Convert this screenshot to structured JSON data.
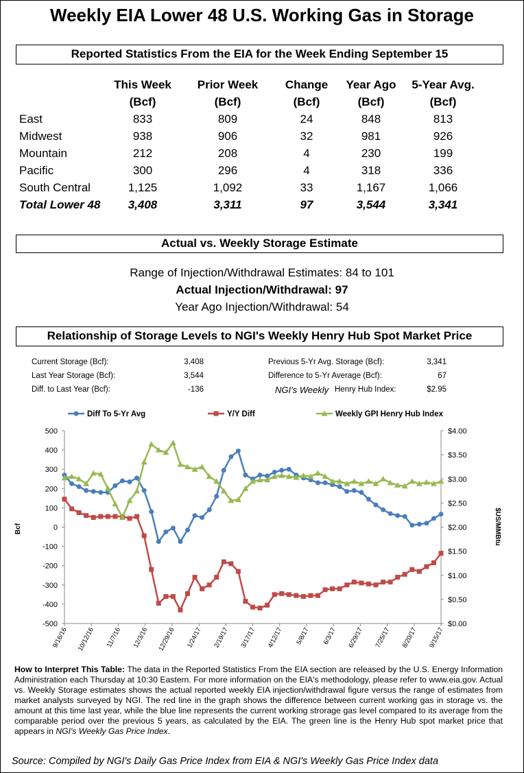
{
  "header": {
    "title": "Weekly EIA Lower 48 U.S. Working Gas in Storage"
  },
  "table": {
    "heading": "Reported Statistics From the EIA for the Week Ending September 15",
    "columns": [
      [
        "This Week",
        "(Bcf)"
      ],
      [
        "Prior Week",
        "(Bcf)"
      ],
      [
        "Change",
        "(Bcf)"
      ],
      [
        "Year Ago",
        "(Bcf)"
      ],
      [
        "5-Year Avg.",
        "(Bcf)"
      ]
    ],
    "rows": [
      {
        "label": "East",
        "cells": [
          "833",
          "809",
          "24",
          "848",
          "813"
        ]
      },
      {
        "label": "Midwest",
        "cells": [
          "938",
          "906",
          "32",
          "981",
          "926"
        ]
      },
      {
        "label": "Mountain",
        "cells": [
          "212",
          "208",
          "4",
          "230",
          "199"
        ]
      },
      {
        "label": "Pacific",
        "cells": [
          "300",
          "296",
          "4",
          "318",
          "336"
        ]
      },
      {
        "label": "South Central",
        "cells": [
          "1,125",
          "1,092",
          "33",
          "1,167",
          "1,066"
        ]
      },
      {
        "label": "Total Lower 48",
        "cells": [
          "3,408",
          "3,311",
          "97",
          "3,544",
          "3,341"
        ]
      }
    ]
  },
  "estimates": {
    "heading": "Actual vs. Weekly Storage Estimate",
    "lines": [
      {
        "label": "Range of Injection/Withdrawal Estimates:",
        "value": "84 to 101"
      },
      {
        "label": "Actual Injection/Withdrawal:",
        "value": "97"
      },
      {
        "label": "Year Ago Injection/Withdrawal:",
        "value": "54"
      }
    ]
  },
  "relationship": {
    "heading": "Relationship of Storage Levels to NGI's Weekly Henry Hub Spot Market Price",
    "left": [
      {
        "label": "Current Storage (Bcf):",
        "value": "3,408"
      },
      {
        "label": "Last Year Storage (Bcf):",
        "value": "3,544"
      },
      {
        "label": "Diff. to Last Year (Bcf):",
        "value": "-136"
      }
    ],
    "right": [
      {
        "label": "Previous 5-Yr Avg. Storage (Bcf):",
        "value": "3,341"
      },
      {
        "label": "Difference to 5-Yr Average (Bcf):",
        "value": "67"
      },
      {
        "label_italic": "NGI's Weekly",
        "label": "Henry Hub Index:",
        "value": "$2.95"
      }
    ]
  },
  "chart_data": {
    "type": "line",
    "date_axis": true,
    "x": [
      "9/16/16",
      "9/23/16",
      "9/30/16",
      "10/7/16",
      "10/14/16",
      "10/21/16",
      "10/28/16",
      "11/4/16",
      "11/11/16",
      "11/18/16",
      "11/25/16",
      "12/2/16",
      "12/9/16",
      "12/16/16",
      "12/23/16",
      "12/30/16",
      "1/6/17",
      "1/13/17",
      "1/20/17",
      "1/27/17",
      "2/3/17",
      "2/10/17",
      "2/17/17",
      "2/24/17",
      "3/3/17",
      "3/10/17",
      "3/17/17",
      "3/24/17",
      "3/31/17",
      "4/7/17",
      "4/14/17",
      "4/21/17",
      "4/28/17",
      "5/5/17",
      "5/12/17",
      "5/19/17",
      "5/26/17",
      "6/2/17",
      "6/9/17",
      "6/16/17",
      "6/23/17",
      "6/30/17",
      "7/7/17",
      "7/14/17",
      "7/21/17",
      "7/28/17",
      "8/4/17",
      "8/11/17",
      "8/18/17",
      "8/25/17",
      "9/1/17",
      "9/8/17",
      "9/15/17"
    ],
    "xlim": [
      "9/16/16",
      "9/15/17"
    ],
    "xticks": [
      "9/16/16",
      "10/12/16",
      "11/7/16",
      "12/3/16",
      "12/29/16",
      "1/24/17",
      "2/19/17",
      "3/17/17",
      "4/12/17",
      "5/8/17",
      "6/3/17",
      "6/29/17",
      "7/25/17",
      "8/20/17",
      "9/15/17"
    ],
    "ylim": [
      -500,
      500
    ],
    "yticks": [
      -500,
      -400,
      -300,
      -200,
      -100,
      0,
      100,
      200,
      300,
      400,
      500
    ],
    "ylabel": "Bcf",
    "y2lim": [
      0,
      4
    ],
    "y2ticks": [
      {
        "value": 0,
        "label": "$0.00"
      },
      {
        "value": 0.5,
        "label": "$0.50"
      },
      {
        "value": 1,
        "label": "$1.00"
      },
      {
        "value": 1.5,
        "label": "$1.50"
      },
      {
        "value": 2,
        "label": "$2.00"
      },
      {
        "value": 2.5,
        "label": "$2.50"
      },
      {
        "value": 3,
        "label": "$3.00"
      },
      {
        "value": 3.5,
        "label": "$3.50"
      },
      {
        "value": 4,
        "label": "$4.00"
      }
    ],
    "y2label": "$US/MMBtu",
    "grid": false,
    "legend": "top",
    "series": [
      {
        "name": "Diff To 5-Yr Avg",
        "color": "#4a7ebb",
        "marker": "circle",
        "values": [
          270,
          225,
          210,
          190,
          185,
          180,
          180,
          215,
          240,
          235,
          255,
          190,
          80,
          -75,
          -25,
          -5,
          -75,
          -15,
          60,
          50,
          90,
          160,
          295,
          365,
          395,
          270,
          250,
          270,
          265,
          285,
          295,
          300,
          270,
          255,
          245,
          230,
          230,
          220,
          210,
          185,
          190,
          180,
          145,
          115,
          90,
          70,
          60,
          55,
          10,
          15,
          20,
          45,
          67
        ]
      },
      {
        "name": "Y/Y Diff",
        "color": "#be4b48",
        "marker": "square",
        "values": [
          145,
          95,
          75,
          60,
          50,
          55,
          55,
          55,
          55,
          45,
          55,
          -45,
          -220,
          -395,
          -360,
          -360,
          -430,
          -345,
          -260,
          -320,
          -300,
          -260,
          -180,
          -190,
          -230,
          -385,
          -415,
          -420,
          -405,
          -350,
          -345,
          -350,
          -355,
          -360,
          -355,
          -355,
          -325,
          -320,
          -320,
          -300,
          -285,
          -290,
          -295,
          -300,
          -285,
          -285,
          -260,
          -245,
          -220,
          -230,
          -205,
          -185,
          -136
        ]
      },
      {
        "name": "Weekly GPI Henry Hub Index",
        "color": "#98b954",
        "marker": "triangle",
        "axis": "y2",
        "values": [
          3.02,
          3.05,
          3.0,
          2.9,
          3.12,
          3.1,
          2.8,
          2.48,
          2.2,
          2.55,
          2.75,
          3.35,
          3.72,
          3.6,
          3.55,
          3.75,
          3.3,
          3.25,
          3.2,
          3.25,
          3.05,
          2.95,
          2.75,
          2.55,
          2.57,
          2.8,
          2.95,
          2.98,
          2.98,
          3.05,
          3.07,
          3.05,
          3.03,
          3.07,
          3.05,
          3.12,
          3.05,
          2.95,
          2.95,
          2.9,
          2.95,
          2.9,
          2.95,
          2.9,
          3.0,
          2.92,
          2.87,
          2.85,
          2.95,
          2.9,
          2.93,
          2.9,
          2.95
        ]
      }
    ]
  },
  "note": {
    "lead": "How to Interpret This Table:",
    "text": "The data in the Reported Statistics From the EIA section are released by the U.S. Energy Information Administration each Thursday at 10:30 Eastern. For more information on the EIA's methodology, please refer to www.eia.gov. Actual vs. Weekly Storage estimates shows the actual reported weekly EIA injection/withdrawal figure versus the range of estimates from market analysts surveyed by NGI. The red line in the graph shows the difference between current working gas in storage vs. the amount at this time last year, while the blue line represents the current working strorage gas level compared to its average from the comparable period over the previous 5 years, as calculated by the EIA. The green line is the Henry Hub spot market price that appears in",
    "italic": "NGI's Weekly Gas Price Index",
    "end": "."
  },
  "source": "Source: Compiled by NGI's Daily Gas Price Index from EIA & NGI's Weekly Gas Price Index data"
}
